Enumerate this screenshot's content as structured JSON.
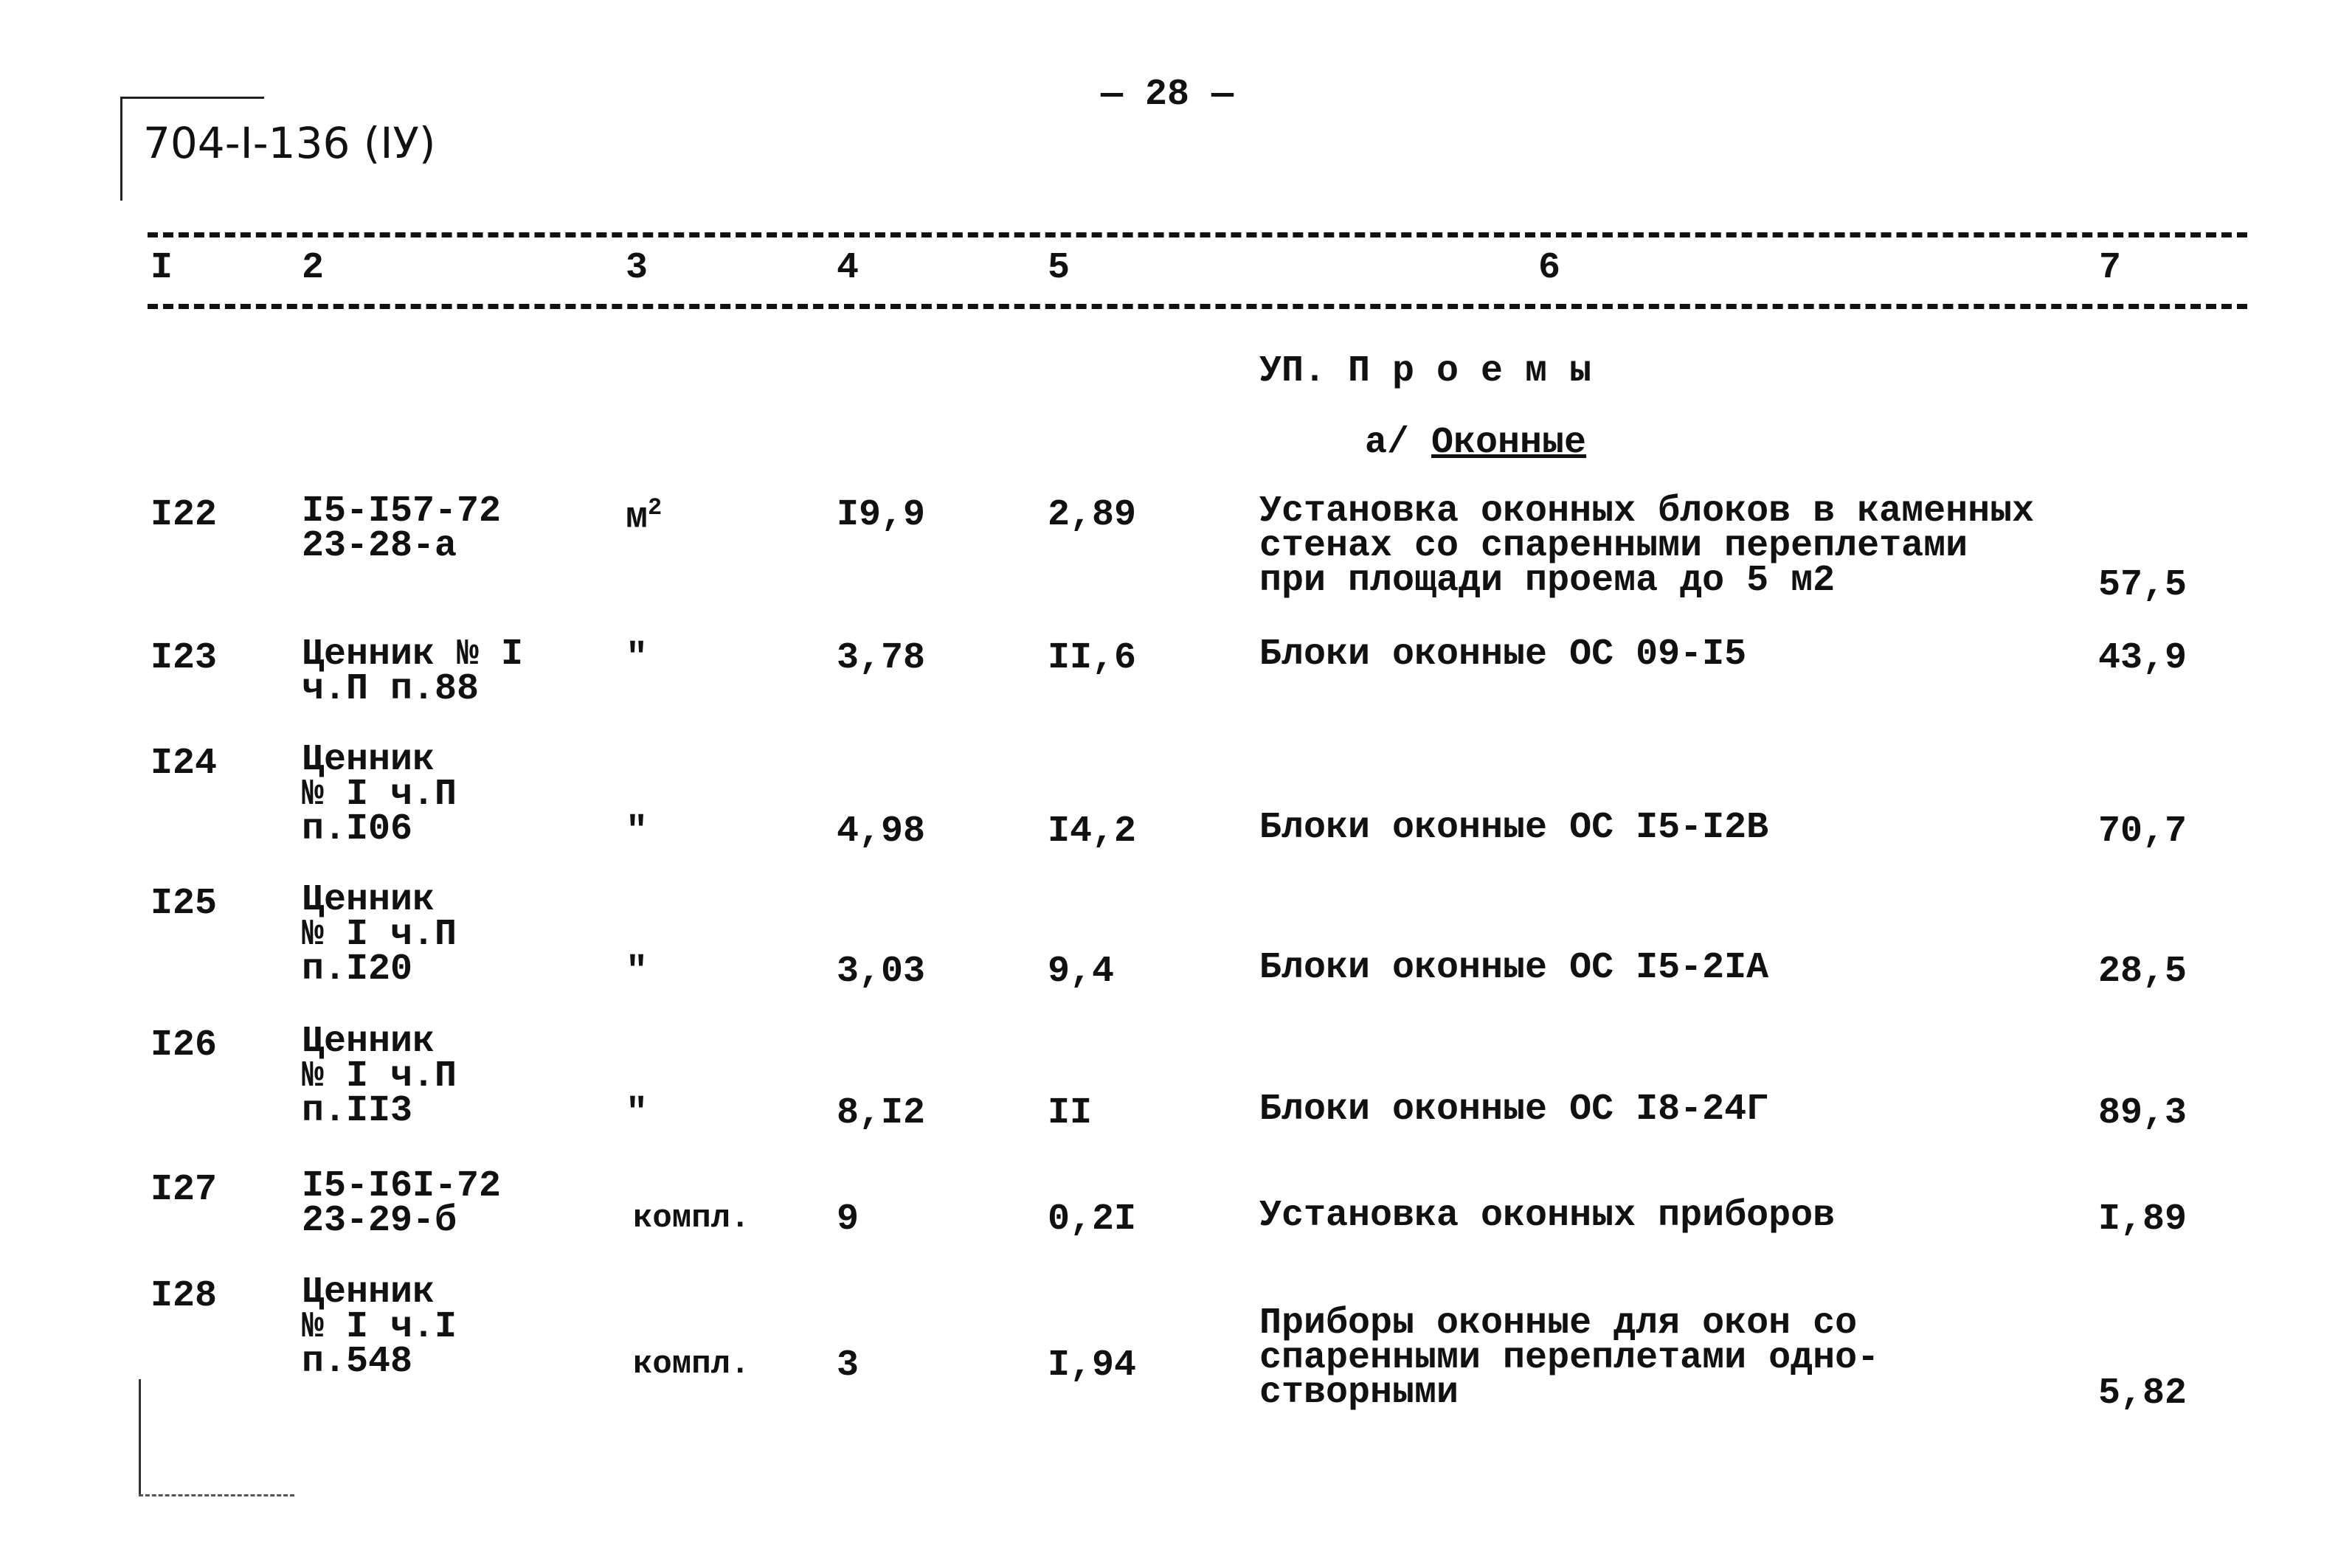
{
  "header": {
    "doc_code": "704-I-136 (IУ)",
    "page_number": "— 28 —"
  },
  "columns": [
    "I",
    "2",
    "3",
    "4",
    "5",
    "6",
    "7"
  ],
  "section": {
    "title": "УП. П р о е м ы",
    "subtitle_prefix": "а/",
    "subtitle": "Оконные"
  },
  "rows": [
    {
      "n": "I22",
      "code": "I5-I57-72\n23-28-а",
      "unit": "м",
      "unit_sup": "2",
      "qty": "I9,9",
      "price": "2,89",
      "desc": "Установка оконных блоков в каменных\nстенах со спаренными переплетами\nпри площади проема до 5 м2",
      "total": "57,5"
    },
    {
      "n": "I23",
      "code": "Ценник № I\nч.П п.88",
      "unit": "\"",
      "qty": "3,78",
      "price": "II,6",
      "desc": "Блоки оконные ОС 09-I5",
      "total": "43,9"
    },
    {
      "n": "I24",
      "code": "Ценник\n№ I ч.П\nп.I06",
      "unit": "\"",
      "qty": "4,98",
      "price": "I4,2",
      "desc": "Блоки оконные ОС I5-I2В",
      "total": "70,7"
    },
    {
      "n": "I25",
      "code": "Ценник\n№ I ч.П\nп.I20",
      "unit": "\"",
      "qty": "3,03",
      "price": "9,4",
      "desc": "Блоки оконные ОС I5-2IА",
      "total": "28,5"
    },
    {
      "n": "I26",
      "code": "Ценник\n№ I ч.П\nп.II3",
      "unit": "\"",
      "qty": "8,I2",
      "price": "II",
      "desc": "Блоки оконные ОС I8-24Г",
      "total": "89,3"
    },
    {
      "n": "I27",
      "code": "I5-I6I-72\n23-29-б",
      "unit": "компл.",
      "qty": "9",
      "price": "0,2I",
      "desc": "Установка оконных приборов",
      "total": "I,89"
    },
    {
      "n": "I28",
      "code": "Ценник\n№ I ч.I\nп.548",
      "unit": "компл.",
      "qty": "3",
      "price": "I,94",
      "desc": "Приборы оконные для окон со\nспаренными переплетами одно-\nстворными",
      "total": "5,82"
    }
  ]
}
